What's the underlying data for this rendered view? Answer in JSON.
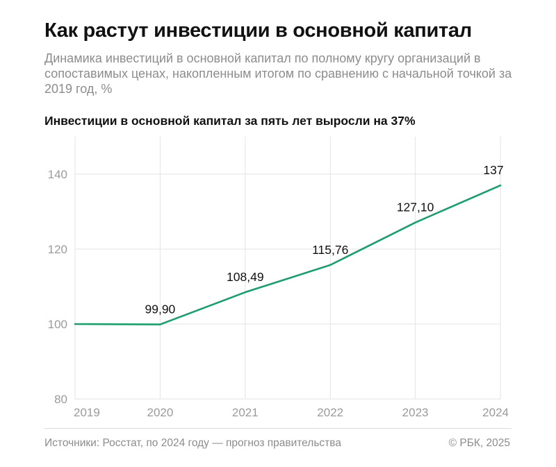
{
  "header": {
    "title": "Как растут инвестиции в основной капитал",
    "subtitle": "Динамика инвестиций в основной капитал по полному кругу организаций в сопоставимых ценах, накопленным итогом по сравнению с начальной точкой за 2019 год, %"
  },
  "chart_heading": "Инвестиции в основной капитал за пять лет выросли на 37%",
  "footer": {
    "source": "Источники: Росстат, по 2024 году — прогноз правительства",
    "copyright": "© РБК, 2025"
  },
  "colors": {
    "line": "#1a9e6e",
    "grid": "#e3e3e3",
    "tick_label": "#9a9a9a",
    "data_label": "#111111"
  },
  "chart_data": {
    "type": "line",
    "title": "Инвестиции в основной капитал за пять лет выросли на 37%",
    "x": [
      "2019",
      "2020",
      "2021",
      "2022",
      "2023",
      "2024"
    ],
    "series": [
      {
        "values": [
          100,
          99.9,
          108.49,
          115.76,
          127.1,
          137
        ],
        "labels": [
          "",
          "99,90",
          "108,49",
          "115,76",
          "127,10",
          "137"
        ]
      }
    ],
    "ylim": [
      80,
      150
    ],
    "yticks": [
      80,
      100,
      120,
      140
    ],
    "grid": true,
    "legend": "none"
  }
}
